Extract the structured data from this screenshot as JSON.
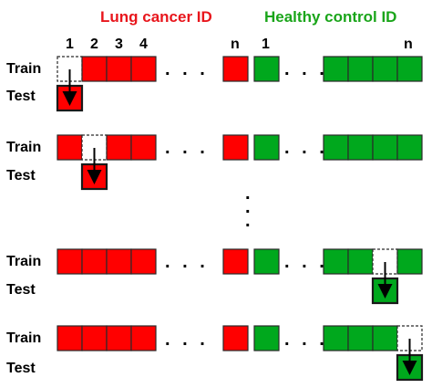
{
  "headers": {
    "lung": "Lung cancer ID",
    "healthy": "Healthy control ID"
  },
  "colors": {
    "lung": "#ff0000",
    "healthy": "#00a81d",
    "lung_header": "#e8161c",
    "healthy_header": "#1aa51a",
    "border": "#2a2a2a"
  },
  "lung_indices": [
    "1",
    "2",
    "3",
    "4",
    "n"
  ],
  "healthy_indices": [
    "1",
    "n"
  ],
  "labels": {
    "train": "Train",
    "test": "Test"
  },
  "ellipsis": ". . .",
  "vertical_ellipsis": ".",
  "folds": [
    {
      "group": "lung",
      "held_out_position": 1
    },
    {
      "group": "lung",
      "held_out_position": 2
    },
    {
      "group": "healthy",
      "held_out_position": "n-1"
    },
    {
      "group": "healthy",
      "held_out_position": "n"
    }
  ]
}
